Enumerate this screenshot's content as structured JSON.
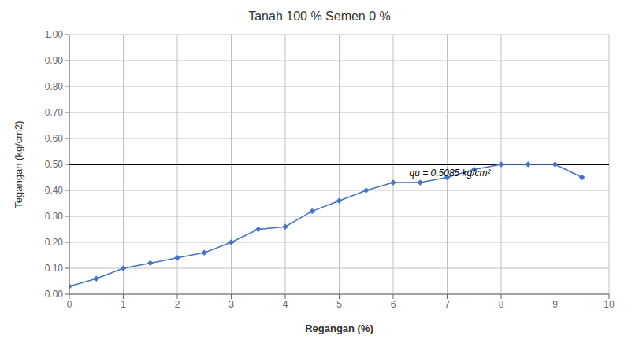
{
  "chart_data": {
    "type": "line",
    "title": "Tanah 100 % Semen 0 %",
    "xlabel": "Regangan (%)",
    "ylabel": "Tegangan (kg/cm2)",
    "x": [
      0,
      0.5,
      1,
      1.5,
      2,
      2.5,
      3,
      3.5,
      4,
      4.5,
      5,
      5.5,
      6,
      6.5,
      7,
      7.5,
      8,
      8.5,
      9,
      9.5
    ],
    "values": [
      0.03,
      0.06,
      0.1,
      0.12,
      0.14,
      0.16,
      0.2,
      0.25,
      0.26,
      0.32,
      0.36,
      0.4,
      0.43,
      0.43,
      0.45,
      0.48,
      0.5,
      0.5,
      0.5,
      0.45
    ],
    "color": "#4472C4",
    "marker": "diamond",
    "reference_lines": [
      {
        "y": 0.5,
        "color": "#000000"
      }
    ],
    "annotations": [
      {
        "text": "qu = 0,5085 kg/cm²",
        "x": 6.3,
        "y": 0.455
      }
    ],
    "xlim": [
      0,
      10
    ],
    "ylim": [
      0.0,
      1.0
    ],
    "xticks": [
      0,
      1,
      2,
      3,
      4,
      5,
      6,
      7,
      8,
      9,
      10
    ],
    "yticks": [
      {
        "value": 0.0,
        "label": "0.00"
      },
      {
        "value": 0.1,
        "label": "0.10"
      },
      {
        "value": 0.2,
        "label": "0.20"
      },
      {
        "value": 0.3,
        "label": "0.30"
      },
      {
        "value": 0.4,
        "label": "0.40"
      },
      {
        "value": 0.5,
        "label": "0.50"
      },
      {
        "value": 0.6,
        "label": "0.60"
      },
      {
        "value": 0.7,
        "label": "0.70"
      },
      {
        "value": 0.8,
        "label": "0.80"
      },
      {
        "value": 0.9,
        "label": "0.90"
      },
      {
        "value": 1.0,
        "label": "1.00"
      }
    ],
    "grid": true
  }
}
